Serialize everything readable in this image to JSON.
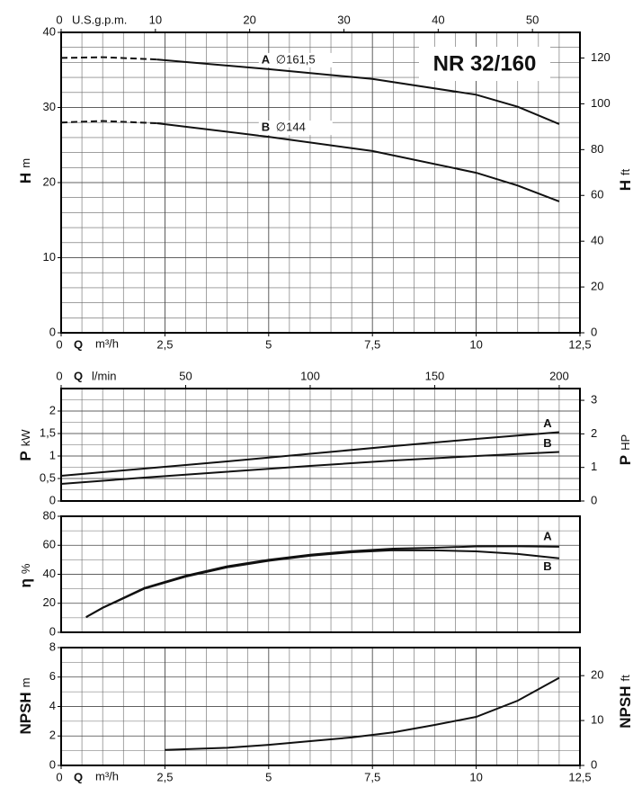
{
  "chart_data": [
    {
      "type": "line",
      "title": "NR 32/160",
      "x_label": "Q",
      "x_unit": "m³/h",
      "x2_unit": "U.S.g.p.m.",
      "y_label": "H",
      "y_unit": "m",
      "y2_label": "H",
      "y2_unit": "ft",
      "xlim": [
        0,
        12.5
      ],
      "xticks": [
        0,
        {
          "value": 2.5,
          "label": "2,5"
        },
        5,
        {
          "value": 7.5,
          "label": "7,5"
        },
        10,
        {
          "value": 12.5,
          "label": "12,5"
        }
      ],
      "x2lim": [
        0,
        55.04
      ],
      "x2ticks": [
        0,
        10,
        20,
        30,
        40,
        50
      ],
      "ylim": [
        0,
        40
      ],
      "yticks": [
        0,
        10,
        20,
        30,
        40
      ],
      "y2lim": [
        0,
        131.2
      ],
      "y2ticks": [
        0,
        20,
        40,
        60,
        80,
        100,
        120
      ],
      "grid": true,
      "series": [
        {
          "name": "A",
          "label": "∅161,5",
          "color": "#111111",
          "dashed_x": [
            0,
            1,
            2.3
          ],
          "dashed_values": [
            36.6,
            36.7,
            36.4
          ],
          "x": [
            2.3,
            5,
            7.5,
            10,
            11,
            12
          ],
          "values": [
            36.4,
            35.1,
            33.8,
            31.7,
            30.1,
            27.8
          ]
        },
        {
          "name": "B",
          "label": "∅144",
          "color": "#111111",
          "dashed_x": [
            0,
            1,
            2.3
          ],
          "dashed_values": [
            28.0,
            28.2,
            27.9
          ],
          "x": [
            2.3,
            5,
            7.5,
            10,
            11,
            12
          ],
          "values": [
            27.9,
            26.1,
            24.2,
            21.3,
            19.6,
            17.5
          ]
        }
      ]
    },
    {
      "type": "line",
      "x2_label": "Q",
      "x2_unit": "l/min",
      "y_label": "P",
      "y_unit": "kW",
      "y2_label": "P",
      "y2_unit": "HP",
      "xlim": [
        0,
        12.5
      ],
      "x2lim": [
        0,
        208.33
      ],
      "x2ticks": [
        0,
        50,
        100,
        150,
        200
      ],
      "ylim": [
        0,
        2.5
      ],
      "yticks": [
        0,
        {
          "value": 0.5,
          "label": "0,5"
        },
        1,
        {
          "value": 1.5,
          "label": "1,5"
        },
        2
      ],
      "y2lim": [
        0,
        3.35
      ],
      "y2ticks": [
        0,
        1,
        2,
        3
      ],
      "grid": true,
      "series": [
        {
          "name": "A",
          "color": "#111111",
          "x": [
            0,
            2,
            4,
            6,
            8,
            10,
            12
          ],
          "values": [
            0.56,
            0.72,
            0.88,
            1.05,
            1.22,
            1.38,
            1.53
          ]
        },
        {
          "name": "B",
          "color": "#111111",
          "x": [
            0,
            2,
            4,
            6,
            8,
            10,
            12
          ],
          "values": [
            0.38,
            0.52,
            0.65,
            0.78,
            0.9,
            1.0,
            1.09
          ]
        }
      ]
    },
    {
      "type": "line",
      "y_label": "η",
      "y_unit": "%",
      "xlim": [
        0,
        12.5
      ],
      "ylim": [
        0,
        80
      ],
      "yticks": [
        0,
        20,
        40,
        60,
        80
      ],
      "grid": true,
      "series": [
        {
          "name": "A",
          "color": "#111111",
          "x": [
            0.6,
            1,
            2,
            3,
            4,
            5,
            6,
            7,
            8,
            9,
            10,
            11,
            12
          ],
          "values": [
            10.5,
            17,
            30.5,
            39,
            45.5,
            50,
            53.5,
            56,
            57.7,
            58.3,
            59.2,
            59.3,
            59
          ]
        },
        {
          "name": "B",
          "color": "#111111",
          "x": [
            0.6,
            1,
            2,
            3,
            4,
            5,
            6,
            7,
            8,
            9,
            10,
            11,
            12
          ],
          "values": [
            10.5,
            16.8,
            30,
            38.3,
            44.8,
            49.3,
            52.8,
            55.2,
            56.6,
            56.5,
            55.8,
            54,
            51
          ]
        }
      ]
    },
    {
      "type": "line",
      "x_label": "Q",
      "x_unit": "m³/h",
      "y_label": "NPSH",
      "y_unit": "m",
      "y2_label": "NPSH",
      "y2_unit": "ft",
      "xlim": [
        0,
        12.5
      ],
      "xticks": [
        0,
        {
          "value": 2.5,
          "label": "2,5"
        },
        5,
        {
          "value": 7.5,
          "label": "7,5"
        },
        10,
        {
          "value": 12.5,
          "label": "12,5"
        }
      ],
      "ylim": [
        0,
        8
      ],
      "yticks": [
        0,
        2,
        4,
        6,
        8
      ],
      "y2lim": [
        0,
        26.25
      ],
      "y2ticks": [
        0,
        10,
        20
      ],
      "grid": true,
      "series": [
        {
          "color": "#111111",
          "x": [
            2.5,
            4,
            5,
            6,
            7,
            8,
            9,
            10,
            11,
            12
          ],
          "values": [
            1.05,
            1.2,
            1.4,
            1.65,
            1.9,
            2.25,
            2.75,
            3.3,
            4.4,
            5.95
          ]
        }
      ]
    }
  ]
}
